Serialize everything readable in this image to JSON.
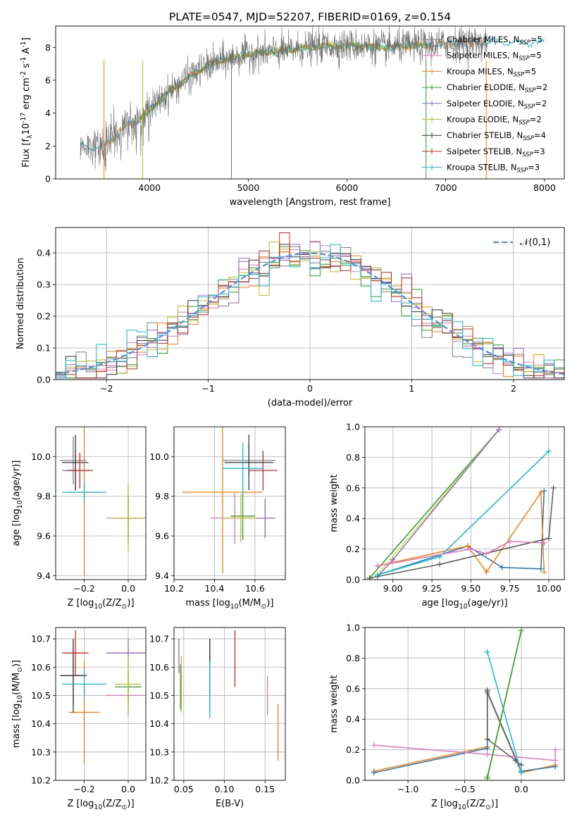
{
  "figure": {
    "title": "PLATE=0547, MJD=52207, FIBERID=0169, z=0.154"
  },
  "colors": {
    "Chabrier MILES": "#7f7f7f",
    "Salpeter MILES": "#e377c2",
    "Kroupa MILES": "#ff7f0e",
    "Chabrier ELODIE": "#2ca02c",
    "Salpeter ELODIE": "#9467bd",
    "Kroupa ELODIE": "#bcbd22",
    "Chabrier STELIB": "#333333",
    "Salpeter STELIB": "#d62728",
    "Kroupa STELIB": "#17becf",
    "normal": "#5b8fd8",
    "line_blue": "#1f77b4",
    "line_orange": "#ff7f0e",
    "line_green": "#2ca02c",
    "line_purple": "#9467bd",
    "line_olive": "#bcbd22",
    "line_pink": "#e377c2",
    "line_gray": "#555555",
    "line_cyan": "#17becf",
    "line_lime": "#d4e157"
  },
  "chart_data": [
    {
      "type": "line",
      "panel": "spectrum",
      "xlabel": "wavelength [Angstrom, rest frame]",
      "ylabel": "Flux [f$_\\lambda$10$^{-17}$ erg cm$^{-2}$ s$^{-1}$ A$^{-1}$]",
      "xlim": [
        3050,
        8200
      ],
      "ylim": [
        0,
        9.3
      ],
      "xticks": [
        4000,
        5000,
        6000,
        7000,
        8000
      ],
      "yticks": [
        0,
        2,
        4,
        6,
        8
      ],
      "grid": false,
      "legend_position": "top-right",
      "series": [
        {
          "name": "Chabrier MILES",
          "nssp": "5"
        },
        {
          "name": "Salpeter MILES",
          "nssp": "5"
        },
        {
          "name": "Kroupa MILES",
          "nssp": "5"
        },
        {
          "name": "Chabrier ELODIE",
          "nssp": "2"
        },
        {
          "name": "Salpeter ELODIE",
          "nssp": "2"
        },
        {
          "name": "Kroupa ELODIE",
          "nssp": "2"
        },
        {
          "name": "Chabrier STELIB",
          "nssp": "4"
        },
        {
          "name": "Salpeter STELIB",
          "nssp": "3"
        },
        {
          "name": "Kroupa STELIB",
          "nssp": "3"
        }
      ],
      "continuum": {
        "x": [
          3300,
          3500,
          3650,
          3800,
          3900,
          4000,
          4200,
          4400,
          4600,
          4800,
          5000,
          5200,
          5400,
          5600,
          5800,
          6000,
          6200,
          6400,
          6600,
          6800,
          7000,
          7200,
          7400
        ],
        "y": [
          2.0,
          1.9,
          2.6,
          3.4,
          3.6,
          4.2,
          5.3,
          6.2,
          6.9,
          7.3,
          7.6,
          7.7,
          7.8,
          8.0,
          8.1,
          8.1,
          8.1,
          8.0,
          8.1,
          8.1,
          8.2,
          8.3,
          8.3
        ]
      }
    },
    {
      "type": "area",
      "panel": "residual-histogram",
      "xlabel": "(data-model)/error",
      "ylabel": "Normed distribution",
      "xlim": [
        -2.5,
        2.5
      ],
      "ylim": [
        0,
        0.48
      ],
      "xticks": [
        -2,
        -1,
        0,
        1,
        2
      ],
      "yticks": [
        0.0,
        0.1,
        0.2,
        0.3,
        0.4
      ],
      "grid": true,
      "legend_position": "top-right",
      "legend": "$\\mathcal{N}(0,1)$",
      "bin_width": 0.1
    },
    {
      "type": "scatter",
      "panel": "age-vs-Z",
      "xlabel": "Z [log$_{10}$(Z/Z$_\\odot$)]",
      "ylabel": "age  [log$_{10}$(age/yr)]",
      "xlim": [
        -0.33,
        0.08
      ],
      "ylim": [
        9.38,
        10.15
      ],
      "xticks": [
        -0.2,
        0.0
      ],
      "yticks": [
        9.4,
        9.6,
        9.8,
        10.0
      ],
      "grid": true,
      "points": [
        {
          "series": "Chabrier MILES",
          "x": -0.25,
          "y": 9.98,
          "xerr": 0.06,
          "yerr": 0.12
        },
        {
          "series": "Salpeter MILES",
          "x": 0.0,
          "y": 9.69,
          "xerr": 0.1,
          "yerr": 0.13
        },
        {
          "series": "Kroupa MILES",
          "x": -0.2,
          "y": 9.82,
          "xerr": 0.07,
          "yerr": 0.42
        },
        {
          "series": "Chabrier ELODIE",
          "x": 0.0,
          "y": 9.69,
          "xerr": 0.06,
          "yerr": 0.11
        },
        {
          "series": "Salpeter ELODIE",
          "x": -0.24,
          "y": 9.93,
          "xerr": 0.06,
          "yerr": 0.1
        },
        {
          "series": "Kroupa ELODIE",
          "x": 0.0,
          "y": 9.69,
          "xerr": 0.07,
          "yerr": 0.17
        },
        {
          "series": "Chabrier STELIB",
          "x": -0.24,
          "y": 9.97,
          "xerr": 0.06,
          "yerr": 0.14
        },
        {
          "series": "Salpeter STELIB",
          "x": -0.22,
          "y": 9.93,
          "xerr": 0.06,
          "yerr": 0.09
        },
        {
          "series": "Kroupa STELIB",
          "x": -0.2,
          "y": 9.82,
          "xerr": 0.1,
          "yerr": 0.05
        }
      ]
    },
    {
      "type": "scatter",
      "panel": "age-vs-mass",
      "xlabel": "mass [log$_{10}$(M/M$_\\odot$)]",
      "ylabel": "",
      "xlim": [
        10.2,
        10.75
      ],
      "ylim": [
        9.38,
        10.15
      ],
      "xticks": [
        10.2,
        10.4,
        10.6
      ],
      "yticks": [
        9.4,
        9.6,
        9.8,
        10.0
      ],
      "grid": true,
      "points": [
        {
          "series": "Chabrier MILES",
          "x": 10.57,
          "y": 9.98,
          "xerr": 0.13,
          "yerr": 0.08
        },
        {
          "series": "Salpeter MILES",
          "x": 10.5,
          "y": 9.69,
          "xerr": 0.12,
          "yerr": 0.13
        },
        {
          "series": "Kroupa MILES",
          "x": 10.44,
          "y": 9.82,
          "xerr": 0.2,
          "yerr": 0.41
        },
        {
          "series": "Chabrier ELODIE",
          "x": 10.54,
          "y": 9.7,
          "xerr": 0.06,
          "yerr": 0.12
        },
        {
          "series": "Salpeter ELODIE",
          "x": 10.65,
          "y": 9.69,
          "xerr": 0.05,
          "yerr": 0.1
        },
        {
          "series": "Kroupa ELODIE",
          "x": 10.53,
          "y": 9.69,
          "xerr": 0.08,
          "yerr": 0.12
        },
        {
          "series": "Chabrier STELIB",
          "x": 10.57,
          "y": 9.97,
          "xerr": 0.12,
          "yerr": 0.14
        },
        {
          "series": "Salpeter STELIB",
          "x": 10.64,
          "y": 9.93,
          "xerr": 0.07,
          "yerr": 0.1
        },
        {
          "series": "Kroupa STELIB",
          "x": 10.54,
          "y": 9.94,
          "xerr": 0.1,
          "yerr": 0.13
        }
      ]
    },
    {
      "type": "line",
      "panel": "mass-weight-vs-age",
      "xlabel": "age  [log$_{10}$(age/yr)]",
      "ylabel": "mass weight",
      "xlim": [
        8.82,
        10.1
      ],
      "ylim": [
        0,
        1.0
      ],
      "xticks": [
        9.0,
        9.25,
        9.5,
        9.75,
        10.0
      ],
      "yticks": [
        0.0,
        0.2,
        0.4,
        0.6,
        0.8,
        1.0
      ],
      "grid": true,
      "series": [
        {
          "color": "line_blue",
          "x": [
            8.9,
            9.48,
            9.7,
            9.95,
            9.97
          ],
          "y": [
            0.03,
            0.22,
            0.08,
            0.07,
            0.58
          ]
        },
        {
          "color": "line_orange",
          "x": [
            8.9,
            9.48,
            9.6,
            9.95,
            9.97
          ],
          "y": [
            0.09,
            0.22,
            0.05,
            0.57,
            0.05
          ]
        },
        {
          "color": "line_green",
          "x": [
            8.85,
            9.68
          ],
          "y": [
            0.01,
            0.98
          ]
        },
        {
          "color": "line_lime",
          "x": [
            8.9,
            9.68
          ],
          "y": [
            0.03,
            0.98
          ]
        },
        {
          "color": "line_purple",
          "x": [
            8.9,
            9.0,
            9.68
          ],
          "y": [
            0.02,
            0.13,
            0.98
          ]
        },
        {
          "color": "line_cyan",
          "x": [
            8.9,
            9.3,
            10.0
          ],
          "y": [
            0.03,
            0.15,
            0.84
          ]
        },
        {
          "color": "line_gray",
          "x": [
            8.85,
            9.3,
            10.0,
            10.03
          ],
          "y": [
            0.01,
            0.1,
            0.27,
            0.6
          ]
        },
        {
          "color": "line_pink",
          "x": [
            8.9,
            9.5,
            9.6,
            9.75,
            9.97
          ],
          "y": [
            0.09,
            0.2,
            0.17,
            0.25,
            0.24
          ]
        }
      ]
    },
    {
      "type": "scatter",
      "panel": "mass-vs-Z",
      "xlabel": "Z [log$_{10}$(Z/Z$_\\odot$)]",
      "ylabel": "mass [log$_{10}$(M/M$_\\odot$)]",
      "xlim": [
        -0.33,
        0.08
      ],
      "ylim": [
        10.2,
        10.74
      ],
      "xticks": [
        -0.2,
        0.0
      ],
      "yticks": [
        10.2,
        10.3,
        10.4,
        10.5,
        10.6,
        10.7
      ],
      "grid": true,
      "points": [
        {
          "series": "Chabrier MILES",
          "x": -0.25,
          "y": 10.57,
          "xerr": 0.06,
          "yerr": 0.1
        },
        {
          "series": "Salpeter MILES",
          "x": 0.0,
          "y": 10.5,
          "xerr": 0.1,
          "yerr": 0.07
        },
        {
          "series": "Kroupa MILES",
          "x": -0.2,
          "y": 10.44,
          "xerr": 0.07,
          "yerr": 0.18
        },
        {
          "series": "Chabrier ELODIE",
          "x": 0.0,
          "y": 10.53,
          "xerr": 0.06,
          "yerr": 0.06
        },
        {
          "series": "Salpeter ELODIE",
          "x": 0.0,
          "y": 10.65,
          "xerr": 0.1,
          "yerr": 0.05
        },
        {
          "series": "Kroupa ELODIE",
          "x": 0.0,
          "y": 10.54,
          "xerr": 0.06,
          "yerr": 0.1
        },
        {
          "series": "Chabrier STELIB",
          "x": -0.25,
          "y": 10.57,
          "xerr": 0.06,
          "yerr": 0.13
        },
        {
          "series": "Salpeter STELIB",
          "x": -0.24,
          "y": 10.65,
          "xerr": 0.06,
          "yerr": 0.08
        },
        {
          "series": "Kroupa STELIB",
          "x": -0.2,
          "y": 10.54,
          "xerr": 0.1,
          "yerr": 0.05
        }
      ]
    },
    {
      "type": "scatter",
      "panel": "mass-vs-EBV",
      "xlabel": "E(B-V)",
      "ylabel": "",
      "xlim": [
        0.038,
        0.175
      ],
      "ylim": [
        10.2,
        10.74
      ],
      "xticks": [
        0.05,
        0.1,
        0.15
      ],
      "yticks": [
        10.2,
        10.3,
        10.4,
        10.5,
        10.6,
        10.7
      ],
      "grid": true,
      "points": [
        {
          "series": "Chabrier MILES",
          "x": 0.082,
          "y": 10.57,
          "yerr": 0.13
        },
        {
          "series": "Salpeter MILES",
          "x": 0.153,
          "y": 10.5,
          "yerr": 0.07
        },
        {
          "series": "Kroupa MILES",
          "x": 0.166,
          "y": 10.37,
          "yerr": 0.1
        },
        {
          "series": "Chabrier ELODIE",
          "x": 0.046,
          "y": 10.53,
          "yerr": 0.08
        },
        {
          "series": "Salpeter ELODIE",
          "x": 0.044,
          "y": 10.64,
          "yerr": 0.06
        },
        {
          "series": "Kroupa ELODIE",
          "x": 0.047,
          "y": 10.54,
          "yerr": 0.1
        },
        {
          "series": "Chabrier STELIB",
          "x": 0.082,
          "y": 10.6,
          "yerr": 0.1
        },
        {
          "series": "Salpeter STELIB",
          "x": 0.113,
          "y": 10.63,
          "yerr": 0.1
        },
        {
          "series": "Kroupa STELIB",
          "x": 0.082,
          "y": 10.52,
          "yerr": 0.1
        }
      ]
    },
    {
      "type": "line",
      "panel": "mass-weight-vs-Z",
      "xlabel": "Z [log$_{10}$(Z/Z$_\\odot$)]",
      "ylabel": "mass weight",
      "xlim": [
        -1.38,
        0.38
      ],
      "ylim": [
        0,
        1.0
      ],
      "xticks": [
        -1.0,
        -0.5,
        0.0
      ],
      "yticks": [
        0.0,
        0.2,
        0.4,
        0.6,
        0.8,
        1.0
      ],
      "grid": true,
      "series": [
        {
          "color": "line_orange",
          "x": [
            -1.3,
            -0.3,
            -0.3,
            0.0,
            0.3
          ],
          "y": [
            0.06,
            0.22,
            0.57,
            0.05,
            0.1
          ]
        },
        {
          "color": "line_blue",
          "x": [
            -1.3,
            -0.3,
            -0.3,
            0.0,
            0.3
          ],
          "y": [
            0.05,
            0.21,
            0.58,
            0.06,
            0.09
          ]
        },
        {
          "color": "line_pink",
          "x": [
            -1.3,
            -0.3,
            0.3,
            0.3
          ],
          "y": [
            0.23,
            0.17,
            0.13,
            0.2
          ]
        },
        {
          "color": "line_gray",
          "x": [
            -0.3,
            -0.3,
            -0.05,
            0.0
          ],
          "y": [
            0.59,
            0.27,
            0.13,
            0.1
          ]
        },
        {
          "color": "line_cyan",
          "x": [
            -0.3,
            0.0
          ],
          "y": [
            0.84,
            0.05
          ]
        },
        {
          "color": "line_olive",
          "x": [
            -0.3,
            0.0
          ],
          "y": [
            0.01,
            0.98
          ]
        },
        {
          "color": "line_green",
          "x": [
            -0.3,
            0.0
          ],
          "y": [
            0.02,
            0.98
          ]
        }
      ]
    }
  ]
}
